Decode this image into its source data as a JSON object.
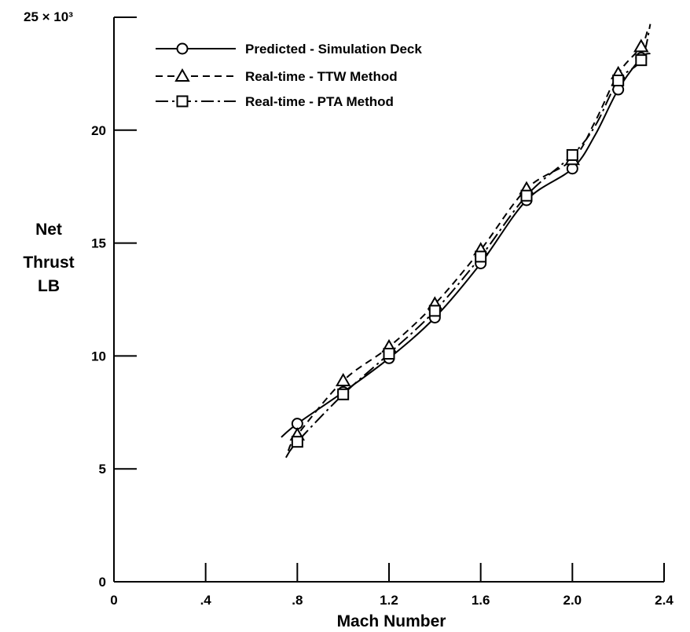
{
  "chart_data": {
    "type": "line",
    "title": "",
    "xlabel": "Mach Number",
    "ylabel_lines": [
      "Net",
      "Thrust",
      "LB"
    ],
    "y_scale_label": "25 × 10³",
    "xlim": [
      0,
      2.4
    ],
    "ylim": [
      0,
      25000
    ],
    "x_ticks": [
      0,
      0.4,
      0.8,
      1.2,
      1.6,
      2.0,
      2.4
    ],
    "x_tick_labels": [
      "0",
      ".4",
      ".8",
      "1.2",
      "1.6",
      "2.0",
      "2.4"
    ],
    "y_ticks": [
      0,
      5000,
      10000,
      15000,
      20000,
      25000
    ],
    "y_tick_labels": [
      "0",
      "5",
      "10",
      "15",
      "20",
      ""
    ],
    "grid": false,
    "legend_position": "top-left",
    "series": [
      {
        "name": "Predicted - Simulation Deck",
        "marker": "circle",
        "line_style": "solid",
        "x": [
          0.8,
          1.0,
          1.2,
          1.4,
          1.6,
          1.8,
          2.0,
          2.2,
          2.3
        ],
        "y": [
          7000,
          8400,
          9900,
          11700,
          14100,
          16900,
          18300,
          21800,
          23200
        ],
        "line_x": [
          0.73,
          0.8,
          1.0,
          1.2,
          1.4,
          1.6,
          1.8,
          2.0,
          2.1,
          2.2,
          2.3,
          2.34
        ],
        "line_y": [
          6400,
          7000,
          8400,
          9900,
          11700,
          14100,
          16900,
          18300,
          19800,
          21800,
          23200,
          23400
        ]
      },
      {
        "name": "Real-time - TTW Method",
        "marker": "triangle",
        "line_style": "dashed",
        "x": [
          0.8,
          1.0,
          1.2,
          1.4,
          1.6,
          1.8,
          2.0,
          2.2,
          2.3
        ],
        "y": [
          6500,
          8900,
          10400,
          12300,
          14700,
          17400,
          18700,
          22500,
          23700
        ],
        "line_x": [
          0.76,
          0.8,
          1.0,
          1.2,
          1.4,
          1.6,
          1.8,
          2.0,
          2.1,
          2.2,
          2.3,
          2.33
        ],
        "line_y": [
          5800,
          6500,
          8900,
          10400,
          12300,
          14700,
          17400,
          18700,
          20400,
          22500,
          23700,
          24500
        ]
      },
      {
        "name": "Real-time - PTA Method",
        "marker": "square",
        "line_style": "dashdot",
        "x": [
          0.8,
          1.0,
          1.2,
          1.4,
          1.6,
          1.8,
          2.0,
          2.2,
          2.3
        ],
        "y": [
          6200,
          8300,
          10100,
          12000,
          14400,
          17100,
          18900,
          22200,
          23100
        ],
        "line_x": [
          0.75,
          0.8,
          1.0,
          1.2,
          1.4,
          1.6,
          1.8,
          2.0,
          2.1,
          2.2,
          2.3,
          2.34
        ],
        "line_y": [
          5500,
          6200,
          8300,
          10100,
          12000,
          14400,
          17100,
          18900,
          20200,
          22200,
          23100,
          24700
        ]
      }
    ]
  }
}
